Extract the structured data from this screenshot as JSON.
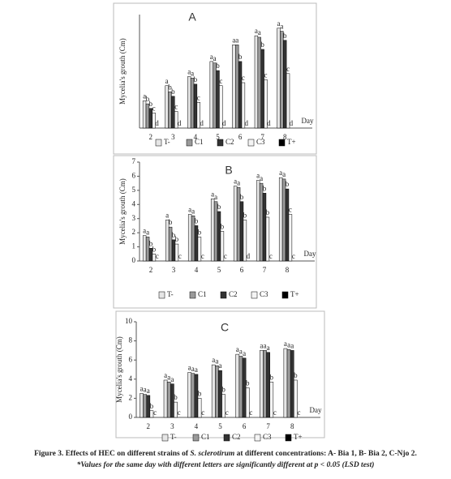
{
  "chart_data": [
    {
      "type": "bar",
      "title": "A",
      "x_label": "Day",
      "y_label": "Mycelia's grouth (Cm)",
      "categories": [
        "2",
        "3",
        "4",
        "5",
        "6",
        "7",
        "8"
      ],
      "ylim": [
        0,
        7.5
      ],
      "series": [
        {
          "name": "T-",
          "color": "#e6e6e6",
          "values": [
            1.8,
            2.8,
            3.4,
            4.4,
            5.5,
            6.1,
            6.6
          ],
          "letters": [
            "a",
            "a",
            "a",
            "a",
            "a",
            "a",
            "a"
          ]
        },
        {
          "name": "C1",
          "color": "#9a9a9a",
          "values": [
            1.6,
            2.4,
            3.3,
            4.3,
            5.5,
            6.0,
            6.4
          ],
          "letters": [
            "b",
            "b",
            "a",
            "a",
            "a",
            "a",
            "a"
          ]
        },
        {
          "name": "C2",
          "color": "#333333",
          "values": [
            1.3,
            2.1,
            2.9,
            3.8,
            4.4,
            5.2,
            5.8
          ],
          "letters": [
            "b",
            "b",
            "b",
            "b",
            "b",
            "b",
            "b"
          ]
        },
        {
          "name": "C3",
          "color": "#f4f4f4",
          "values": [
            1.0,
            1.1,
            1.7,
            2.8,
            3.0,
            3.2,
            3.6
          ],
          "letters": [
            "c",
            "c",
            "c",
            "c",
            "c",
            "c",
            "c"
          ]
        },
        {
          "name": "T+",
          "color": "#000000",
          "values": [
            0,
            0,
            0,
            0,
            0,
            0,
            0
          ],
          "letters": [
            "d",
            "d",
            "d",
            "d",
            "d",
            "d",
            "d"
          ]
        }
      ]
    },
    {
      "type": "bar",
      "title": "B",
      "x_label": "Day",
      "y_label": "Mycelia's grouth (Cm)",
      "categories": [
        "2",
        "3",
        "4",
        "5",
        "6",
        "7",
        "8"
      ],
      "ylim": [
        0,
        7
      ],
      "yticks": [
        0,
        1,
        2,
        3,
        4,
        5,
        6,
        7
      ],
      "series": [
        {
          "name": "T-",
          "color": "#e6e6e6",
          "values": [
            1.8,
            2.9,
            3.3,
            4.4,
            5.3,
            5.7,
            5.9
          ],
          "letters": [
            "a",
            "a",
            "a",
            "a",
            "a",
            "a",
            "a"
          ]
        },
        {
          "name": "C1",
          "color": "#9a9a9a",
          "values": [
            1.7,
            2.4,
            3.2,
            4.2,
            5.2,
            5.5,
            5.8
          ],
          "letters": [
            "a",
            "b",
            "a",
            "a",
            "a",
            "a",
            "a"
          ]
        },
        {
          "name": "C2",
          "color": "#333333",
          "values": [
            0.9,
            1.5,
            2.5,
            3.5,
            4.2,
            4.8,
            5.1
          ],
          "letters": [
            "b",
            "b",
            "b",
            "b",
            "b",
            "b",
            "b"
          ]
        },
        {
          "name": "C3",
          "color": "#f4f4f4",
          "values": [
            0.5,
            1.2,
            1.7,
            2.1,
            2.9,
            3.1,
            3.3
          ],
          "letters": [
            "b",
            "b",
            "b",
            "b",
            "b",
            "b",
            "c"
          ]
        },
        {
          "name": "T+",
          "color": "#000000",
          "values": [
            0,
            0,
            0,
            0,
            0,
            0,
            0
          ],
          "letters": [
            "c",
            "c",
            "c",
            "c",
            "d",
            "c",
            "c"
          ]
        }
      ]
    },
    {
      "type": "bar",
      "title": "C",
      "x_label": "Day",
      "y_label": "Mycelia's grouth (Cm)",
      "categories": [
        "2",
        "3",
        "4",
        "5",
        "6",
        "7",
        "8"
      ],
      "ylim": [
        0,
        10
      ],
      "yticks": [
        0,
        2,
        4,
        6,
        8,
        10
      ],
      "series": [
        {
          "name": "T-",
          "color": "#e6e6e6",
          "values": [
            2.5,
            3.9,
            4.7,
            5.5,
            6.6,
            7.0,
            7.2
          ],
          "letters": [
            "a",
            "a",
            "a",
            "a",
            "a",
            "a",
            "a"
          ]
        },
        {
          "name": "C1",
          "color": "#9a9a9a",
          "values": [
            2.4,
            3.7,
            4.6,
            5.4,
            6.4,
            7.0,
            7.1
          ],
          "letters": [
            "a",
            "a",
            "a",
            "a",
            "a",
            "a",
            "a"
          ]
        },
        {
          "name": "C2",
          "color": "#333333",
          "values": [
            2.3,
            3.5,
            4.5,
            4.9,
            6.2,
            6.8,
            7.0
          ],
          "letters": [
            "a",
            "a",
            "a",
            "a",
            "a",
            "a",
            "a"
          ]
        },
        {
          "name": "C3",
          "color": "#f4f4f4",
          "values": [
            0.7,
            1.6,
            2.0,
            2.4,
            3.1,
            3.7,
            3.9
          ],
          "letters": [
            "b",
            "b",
            "b",
            "b",
            "b",
            "b",
            "b"
          ]
        },
        {
          "name": "T+",
          "color": "#000000",
          "values": [
            0,
            0,
            0,
            0,
            0,
            0,
            0
          ],
          "letters": [
            "c",
            "c",
            "c",
            "c",
            "c",
            "c",
            "c"
          ]
        }
      ]
    }
  ],
  "caption": {
    "lead": "Figure 3. Effects of HEC on different strains of ",
    "species": "S. sclerotirum",
    "rest": " at different concentrations: A- Bia 1, B- Bia 2, C-Njo 2.",
    "note": "*Values for the same day with different letters are significantly different at p < 0.05 (LSD test)"
  }
}
